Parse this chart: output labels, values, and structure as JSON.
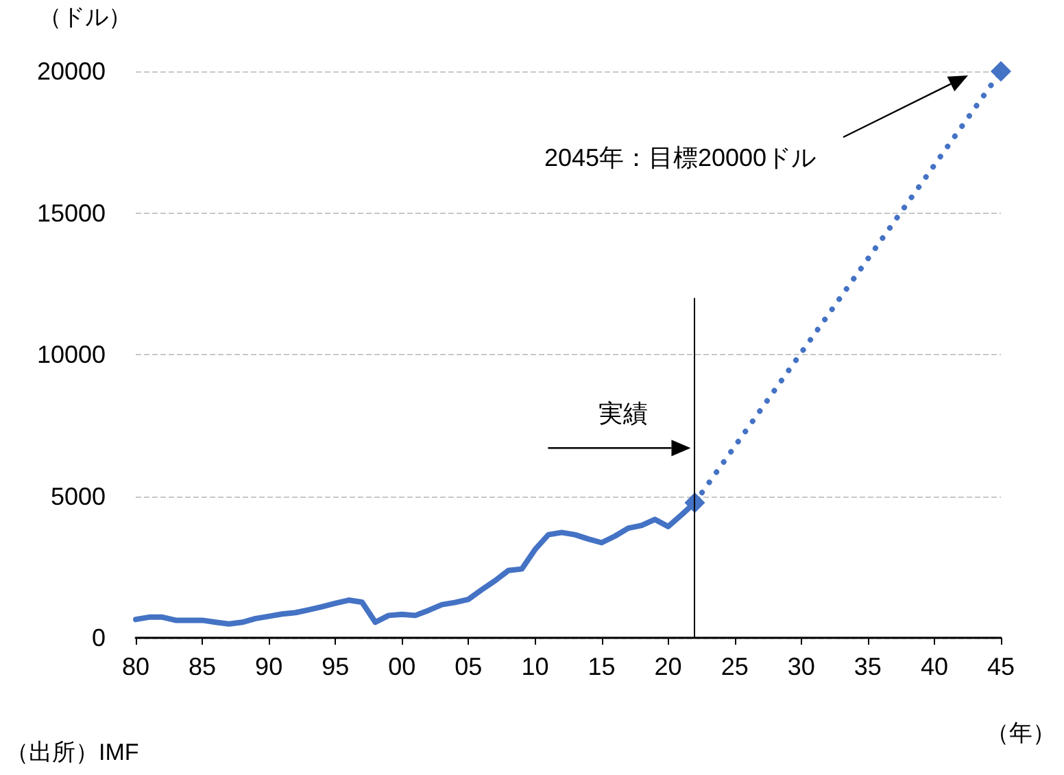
{
  "chart_data": {
    "type": "line",
    "ylabel": "（ドル）",
    "xlabel": "（年）",
    "xlim": [
      1980,
      2045
    ],
    "ylim": [
      0,
      20000
    ],
    "xticks": [
      {
        "value": 1980,
        "label": "80"
      },
      {
        "value": 1985,
        "label": "85"
      },
      {
        "value": 1990,
        "label": "90"
      },
      {
        "value": 1995,
        "label": "95"
      },
      {
        "value": 2000,
        "label": "00"
      },
      {
        "value": 2005,
        "label": "05"
      },
      {
        "value": 2010,
        "label": "10"
      },
      {
        "value": 2015,
        "label": "15"
      },
      {
        "value": 2020,
        "label": "20"
      },
      {
        "value": 2025,
        "label": "25"
      },
      {
        "value": 2030,
        "label": "30"
      },
      {
        "value": 2035,
        "label": "35"
      },
      {
        "value": 2040,
        "label": "40"
      },
      {
        "value": 2045,
        "label": "45"
      }
    ],
    "yticks": [
      0,
      5000,
      10000,
      15000,
      20000
    ],
    "grid": "y",
    "series": [
      {
        "color": "#4472c4",
        "line_style": "solid",
        "marker": "none",
        "x": [
          1980,
          1981,
          1982,
          1983,
          1984,
          1985,
          1986,
          1987,
          1988,
          1989,
          1990,
          1991,
          1992,
          1993,
          1994,
          1995,
          1996,
          1997,
          1998,
          1999,
          2000,
          2001,
          2002,
          2003,
          2004,
          2005,
          2006,
          2007,
          2008,
          2009,
          2010,
          2011,
          2012,
          2013,
          2014,
          2015,
          2016,
          2017,
          2018,
          2019,
          2020,
          2021,
          2022
        ],
        "values": [
          650,
          730,
          730,
          620,
          620,
          620,
          550,
          490,
          550,
          680,
          760,
          840,
          890,
          990,
          1100,
          1220,
          1330,
          1260,
          550,
          790,
          830,
          790,
          970,
          1170,
          1250,
          1360,
          1700,
          2020,
          2380,
          2430,
          3120,
          3640,
          3720,
          3640,
          3490,
          3360,
          3590,
          3870,
          3970,
          4180,
          3930,
          4340,
          4770
        ]
      },
      {
        "color": "#4472c4",
        "line_style": "dotted",
        "marker": "diamond",
        "x": [
          2022,
          2045
        ],
        "values": [
          4770,
          20000
        ]
      }
    ],
    "ref_lines": [
      {
        "axis": "x",
        "value": 2022,
        "label": "実績",
        "color": "#000000"
      }
    ],
    "annotations": [
      "2045年：目標20000ドル",
      "（出所）IMF"
    ]
  }
}
